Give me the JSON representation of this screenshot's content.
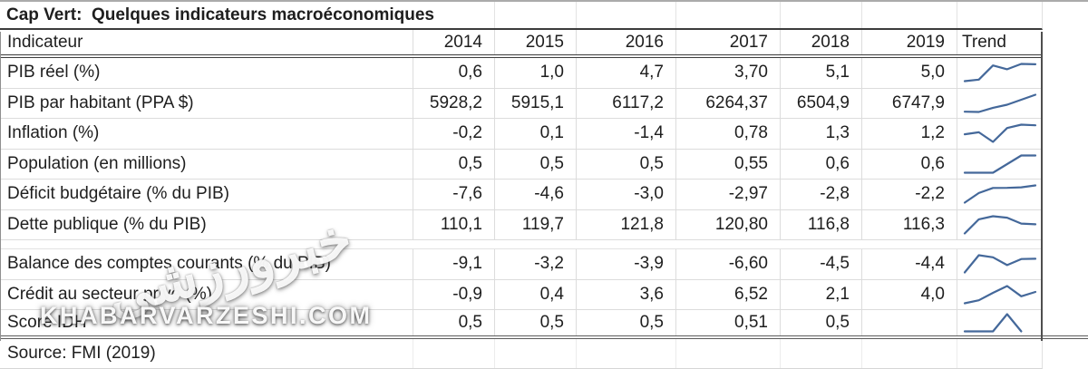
{
  "title": "Cap Vert:  Quelques indicateurs macroéconomiques",
  "source_note": "Source: FMI (2019)",
  "watermark": {
    "logo_text": "خبرورزشی",
    "site_text": "KHABARVARZESHI.COM"
  },
  "colors": {
    "sparkline": "#44689A",
    "text": "#1e1e1e",
    "grid_light": "#dcdcdc",
    "border_dark": "#3c3c3c"
  },
  "table": {
    "columns": [
      "Indicateur",
      "2014",
      "2015",
      "2016",
      "2017",
      "2018",
      "2019",
      "Trend"
    ],
    "rows": [
      {
        "label": "PIB réel (%)",
        "values": [
          "0,6",
          "1,0",
          "4,7",
          "3,70",
          "5,1",
          "5,0"
        ]
      },
      {
        "label": "PIB par habitant (PPA $)",
        "values": [
          "5928,2",
          "5915,1",
          "6117,2",
          "6264,37",
          "6504,9",
          "6747,9"
        ]
      },
      {
        "label": "Inflation (%)",
        "values": [
          "-0,2",
          "0,1",
          "-1,4",
          "0,78",
          "1,3",
          "1,2"
        ]
      },
      {
        "label": "Population (en millions)",
        "values": [
          "0,5",
          "0,5",
          "0,5",
          "0,55",
          "0,6",
          "0,6"
        ]
      },
      {
        "label": "Déficit budgétaire (% du PIB)",
        "values": [
          "-7,6",
          "-4,6",
          "-3,0",
          "-2,97",
          "-2,8",
          "-2,2"
        ]
      },
      {
        "label": "Dette publique (% du PIB)",
        "values": [
          "110,1",
          "119,7",
          "121,8",
          "120,80",
          "116,8",
          "116,3"
        ]
      },
      {
        "label": "Balance des comptes courants (% du PIB)",
        "values": [
          "-9,1",
          "-3,2",
          "-3,9",
          "-6,60",
          "-4,5",
          "-4,4"
        ],
        "gap_before": true
      },
      {
        "label": "Crédit au secteur privé (%)",
        "values": [
          "-0,9",
          "0,4",
          "3,6",
          "6,52",
          "2,1",
          "4,0"
        ]
      },
      {
        "label": "Score IDH",
        "values": [
          "0,5",
          "0,5",
          "0,5",
          "0,51",
          "0,5",
          ""
        ]
      }
    ]
  },
  "chart_data": {
    "type": "table",
    "title": "Cap Vert: Quelques indicateurs macroéconomiques",
    "categories": [
      "2014",
      "2015",
      "2016",
      "2017",
      "2018",
      "2019"
    ],
    "series": [
      {
        "name": "PIB réel (%)",
        "values": [
          0.6,
          1.0,
          4.7,
          3.7,
          5.1,
          5.0
        ]
      },
      {
        "name": "PIB par habitant (PPA $)",
        "values": [
          5928.2,
          5915.1,
          6117.2,
          6264.37,
          6504.9,
          6747.9
        ]
      },
      {
        "name": "Inflation (%)",
        "values": [
          -0.2,
          0.1,
          -1.4,
          0.78,
          1.3,
          1.2
        ]
      },
      {
        "name": "Population (en millions)",
        "values": [
          0.5,
          0.5,
          0.5,
          0.55,
          0.6,
          0.6
        ]
      },
      {
        "name": "Déficit budgétaire (% du PIB)",
        "values": [
          -7.6,
          -4.6,
          -3.0,
          -2.97,
          -2.8,
          -2.2
        ]
      },
      {
        "name": "Dette publique (% du PIB)",
        "values": [
          110.1,
          119.7,
          121.8,
          120.8,
          116.8,
          116.3
        ]
      },
      {
        "name": "Balance des comptes courants (% du PIB)",
        "values": [
          -9.1,
          -3.2,
          -3.9,
          -6.6,
          -4.5,
          -4.4
        ]
      },
      {
        "name": "Crédit au secteur privé (%)",
        "values": [
          -0.9,
          0.4,
          3.6,
          6.52,
          2.1,
          4.0
        ]
      },
      {
        "name": "Score IDH",
        "values": [
          0.5,
          0.5,
          0.5,
          0.51,
          0.5,
          null
        ]
      }
    ],
    "trend_column": "sparkline per row, line type, color #44689A",
    "source": "Source: FMI (2019)"
  }
}
